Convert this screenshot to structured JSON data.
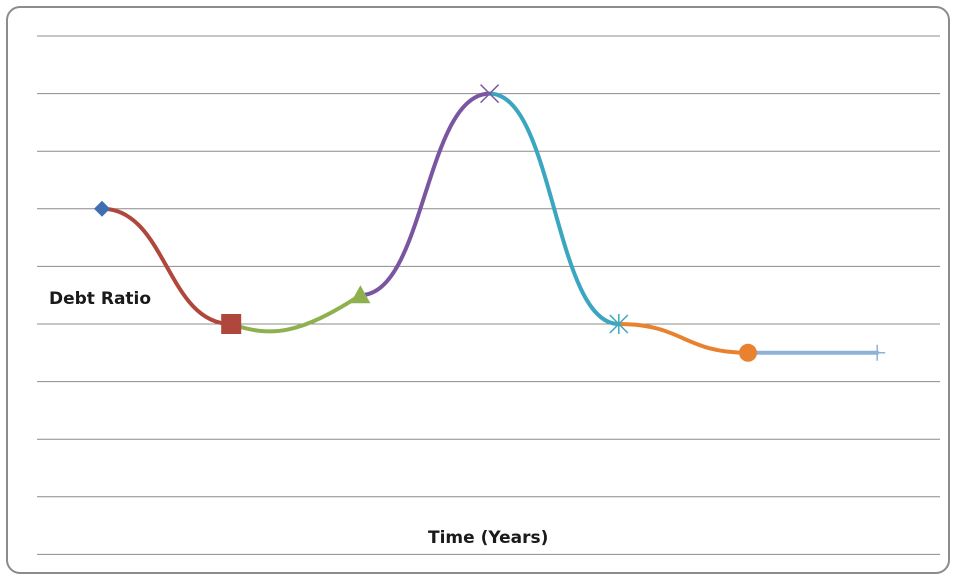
{
  "chart_data": {
    "type": "line",
    "smooth": true,
    "xlabel": "Time (Years)",
    "ylabel": "Debt Ratio",
    "grid": true,
    "ylim": [
      0,
      9
    ],
    "xlim": [
      0,
      8
    ],
    "segments": [
      {
        "x": [
          1,
          2
        ],
        "y": [
          6,
          4
        ],
        "color": "#b0473c",
        "marker_start": "diamond",
        "marker_color": "#3f6fb0"
      },
      {
        "x": [
          2,
          3
        ],
        "y": [
          4,
          4.5
        ],
        "color": "#8fb04f",
        "marker_start": "square",
        "marker_color": "#b0473c"
      },
      {
        "x": [
          3,
          4
        ],
        "y": [
          4.5,
          8
        ],
        "color": "#7a55a0",
        "marker_start": "triangle",
        "marker_color": "#8fb04f"
      },
      {
        "x": [
          4,
          5
        ],
        "y": [
          8,
          4
        ],
        "color": "#3aa6bf",
        "marker_start": "x",
        "marker_color": "#7a55a0"
      },
      {
        "x": [
          5,
          6
        ],
        "y": [
          4,
          3.5
        ],
        "color": "#e8822e",
        "marker_start": "asterisk",
        "marker_color": "#3aa6bf"
      },
      {
        "x": [
          6,
          7
        ],
        "y": [
          3.5,
          3.5
        ],
        "color": "#8fb0d8",
        "marker_start": "circle",
        "marker_color": "#e8822e",
        "marker_end": "plus",
        "marker_end_color": "#8fb0d8"
      }
    ],
    "colors": {
      "grid": "#8c8c8c",
      "frame": "#8c8c8c"
    }
  }
}
